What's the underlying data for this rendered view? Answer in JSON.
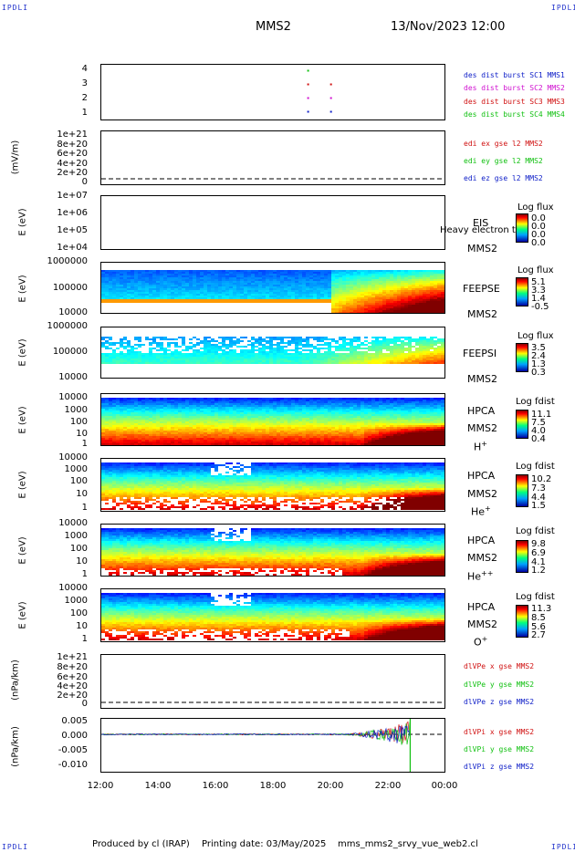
{
  "corners": {
    "tl": "IPDLI",
    "tr": "IPDLI",
    "bl": "IPDLI",
    "br": "IPDLI"
  },
  "header": {
    "spacecraft": "MMS2",
    "datetime": "13/Nov/2023 12:00"
  },
  "footer": {
    "produced": "Produced by cl (IRAP)",
    "printing": "Printing date: 03/May/2025",
    "script": "mms_mms2_srvy_vue_web2.cl"
  },
  "xaxis": {
    "ticks": [
      "12:00",
      "14:00",
      "16:00",
      "18:00",
      "20:00",
      "22:00",
      "00:00"
    ],
    "start_hour": 12,
    "end_hour": 24
  },
  "colors": {
    "blue": "#1020c8",
    "magenta": "#d010d0",
    "red": "#d01010",
    "green": "#10c010",
    "orange": "#ff9900"
  },
  "panels": {
    "p1": {
      "yticks": [
        "4",
        "3",
        "2",
        "1"
      ],
      "ylabel": "",
      "legend": [
        "des dist burst SC1 MMS1",
        "des dist burst SC2 MMS2",
        "des dist burst SC3 MMS3",
        "des dist burst SC4 MMS4"
      ]
    },
    "p2": {
      "yticks": [
        "1e+21",
        "8e+20",
        "6e+20",
        "4e+20",
        "2e+20",
        "0"
      ],
      "ylabel": "(mV/m)",
      "legend": [
        "edi ex gse l2 MMS2",
        "edi ey gse l2 MMS2",
        "edi ez gse l2 MMS2"
      ]
    },
    "p3": {
      "yticks": [
        "1e+07",
        "1e+06",
        "1e+05",
        "1e+04"
      ],
      "ylabel": "E (eV)",
      "inst": "EIS",
      "inst2": "MMS2",
      "note": "Heavy electron to",
      "cbtitle": "Log flux",
      "cbvals": [
        "0.0",
        "0.0",
        "0.0",
        "0.0"
      ]
    },
    "p4": {
      "yticks": [
        "1000000",
        "100000",
        "10000"
      ],
      "ylabel": "E (eV)",
      "inst": "FEEPSE",
      "inst2": "MMS2",
      "cbtitle": "Log flux",
      "cbvals": [
        "5.1",
        "3.3",
        "1.4",
        "-0.5"
      ]
    },
    "p5": {
      "yticks": [
        "1000000",
        "100000",
        "10000"
      ],
      "ylabel": "E (eV)",
      "inst": "FEEPSI",
      "inst2": "MMS2",
      "cbtitle": "Log flux",
      "cbvals": [
        "3.5",
        "2.4",
        "1.3",
        "0.3"
      ]
    },
    "p6": {
      "yticks": [
        "10000",
        "1000",
        "100",
        "10",
        "1"
      ],
      "ylabel": "E (eV)",
      "inst": "HPCA",
      "inst2": "MMS2",
      "ion": "H",
      "ionsup": "+",
      "cbtitle": "Log fdist",
      "cbvals": [
        "11.1",
        "7.5",
        "4.0",
        "0.4"
      ]
    },
    "p7": {
      "yticks": [
        "10000",
        "1000",
        "100",
        "10",
        "1"
      ],
      "ylabel": "E (eV)",
      "inst": "HPCA",
      "inst2": "MMS2",
      "ion": "He",
      "ionsup": "+",
      "cbtitle": "Log fdist",
      "cbvals": [
        "10.2",
        "7.3",
        "4.4",
        "1.5"
      ]
    },
    "p8": {
      "yticks": [
        "10000",
        "1000",
        "100",
        "10",
        "1"
      ],
      "ylabel": "E (eV)",
      "inst": "HPCA",
      "inst2": "MMS2",
      "ion": "He",
      "ionsup": "++",
      "cbtitle": "Log fdist",
      "cbvals": [
        "9.8",
        "6.9",
        "4.1",
        "1.2"
      ]
    },
    "p9": {
      "yticks": [
        "10000",
        "1000",
        "100",
        "10",
        "1"
      ],
      "ylabel": "E (eV)",
      "inst": "HPCA",
      "inst2": "MMS2",
      "ion": "O",
      "ionsup": "+",
      "cbtitle": "Log fdist",
      "cbvals": [
        "11.3",
        "8.5",
        "5.6",
        "2.7"
      ]
    },
    "p10": {
      "yticks": [
        "1e+21",
        "8e+20",
        "6e+20",
        "4e+20",
        "2e+20",
        "0"
      ],
      "ylabel": "(nPa/km)",
      "legend": [
        "dlVPe x gse MMS2",
        "dlVPe y gse MMS2",
        "dlVPe z gse MMS2"
      ]
    },
    "p11": {
      "yticks": [
        "0.005",
        "0.000",
        "-0.005",
        "-0.010"
      ],
      "ylabel": "(nPa/km)",
      "legend": [
        "dlVPi x gse MMS2",
        "dlVPi y gse MMS2",
        "dlVPi z gse MMS2"
      ]
    }
  },
  "chart_data": {
    "type": "heatmap",
    "x_range_hours": [
      12,
      24
    ],
    "burst_markers": [
      {
        "sc": 4,
        "time": 19.2,
        "color": "green"
      },
      {
        "sc": 3,
        "time": 19.2,
        "color": "red"
      },
      {
        "sc": 3,
        "time": 20.0,
        "color": "red"
      },
      {
        "sc": 2,
        "time": 19.2,
        "color": "magenta"
      },
      {
        "sc": 2,
        "time": 20.0,
        "color": "magenta"
      },
      {
        "sc": 1,
        "time": 19.2,
        "color": "blue"
      },
      {
        "sc": 1,
        "time": 20.0,
        "color": "blue"
      }
    ],
    "feepse_onset_hour": 20.0,
    "hpca_gap_hours": [
      15.8,
      17.2
    ],
    "dlvpi_range": [
      -0.012,
      0.005
    ],
    "dlvpi_active_from_hour": 20.5,
    "dlvpi_end_hour": 22.8
  }
}
